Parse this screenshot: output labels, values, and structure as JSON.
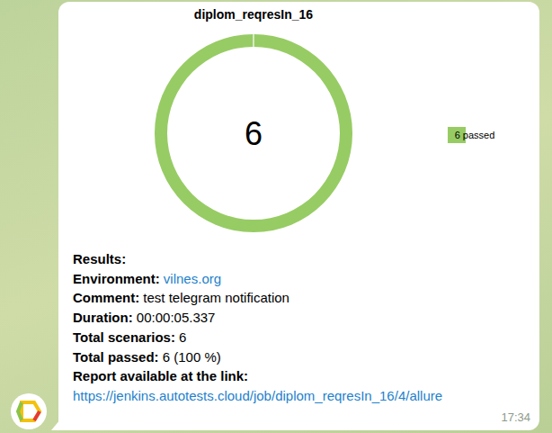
{
  "chart_data": {
    "type": "donut",
    "title": "diplom_reqresIn_16",
    "categories": [
      "6 passed"
    ],
    "values": [
      6
    ],
    "colors": [
      "#97cc64"
    ],
    "center_label": 6,
    "legend": "right"
  },
  "message": {
    "heading": "Results:",
    "fields": [
      {
        "label": "Environment:",
        "value": "vilnes.org",
        "link": true
      },
      {
        "label": "Comment:",
        "value": "test telegram notification"
      },
      {
        "label": "Duration:",
        "value": "00:00:05.337"
      },
      {
        "label": "Total scenarios:",
        "value": "6"
      },
      {
        "label": "Total passed:",
        "value": "6 (100 %)"
      }
    ],
    "report_label": "Report available at the link:",
    "report_url": "https://jenkins.autotests.cloud/job/diplom_reqresIn_16/4/allure",
    "time": "17:34"
  }
}
